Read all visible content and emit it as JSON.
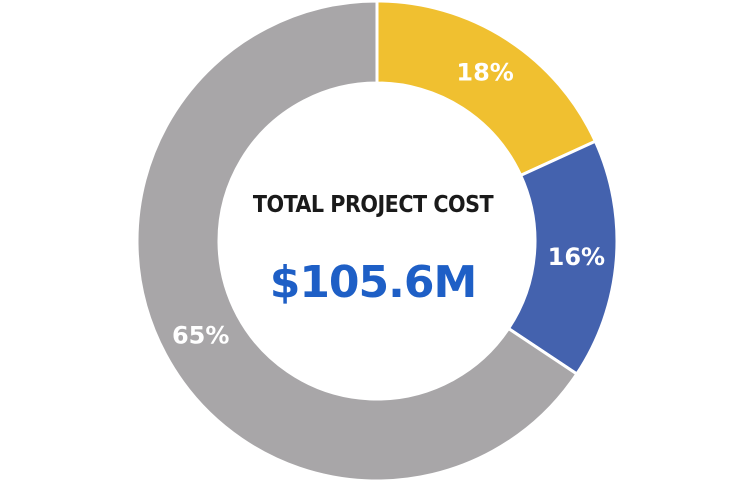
{
  "chart_data": {
    "type": "pie",
    "title": "TOTAL PROJECT COST",
    "center_value": "$105.6M",
    "slices": [
      {
        "label": "18%",
        "value": 18,
        "color": "#f0c030"
      },
      {
        "label": "16%",
        "value": 16,
        "color": "#4462ae"
      },
      {
        "label": "65%",
        "value": 65,
        "color": "#a8a6a8"
      }
    ],
    "start_angle_deg": 0,
    "direction": "clockwise",
    "separator_color": "#ffffff",
    "center_value_color": "#1e5fc6"
  }
}
